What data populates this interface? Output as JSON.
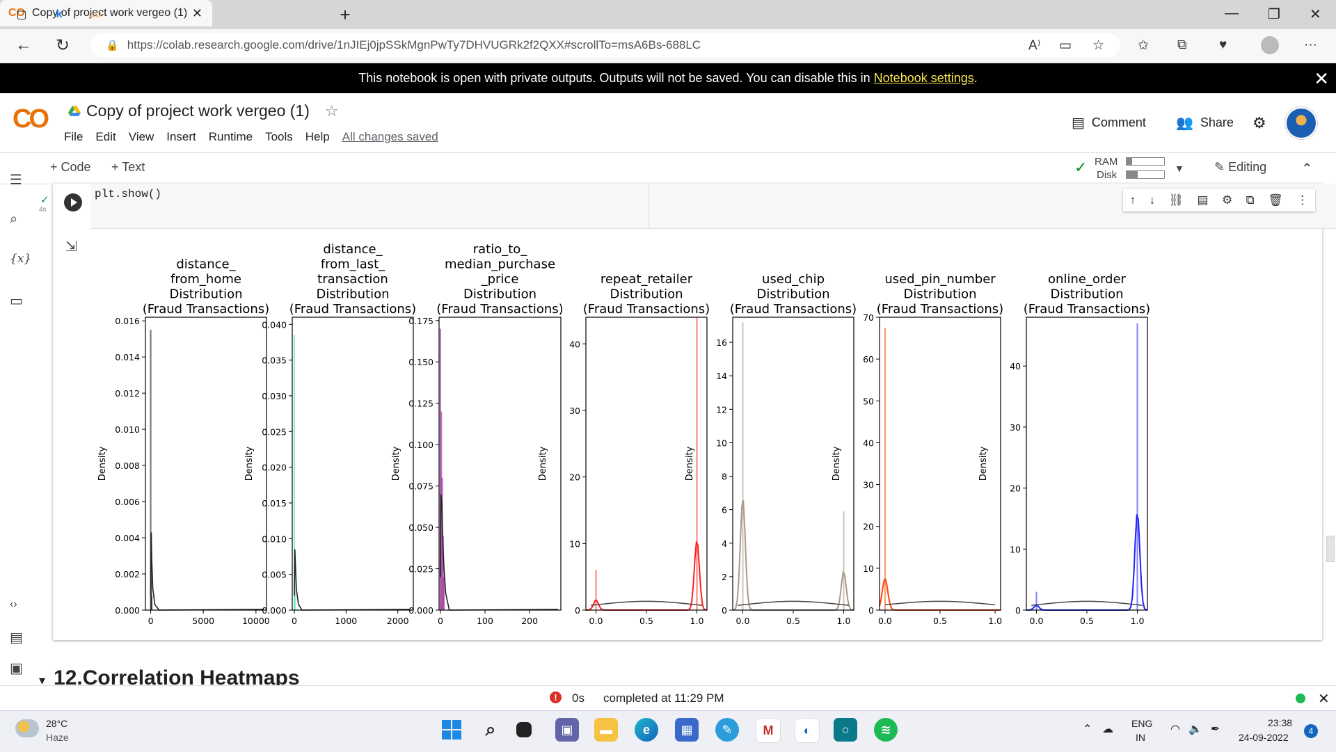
{
  "browser": {
    "tab_title": "Copy of project work vergeo (1)",
    "tab_logo": "CO",
    "mini_tab_2": "k",
    "url": "https://colab.research.google.com/drive/1nJIEj0jpSSkMgnPwTy7DHVUGRk2f2QXX#scrollTo=msA6Bs-688LC"
  },
  "notice": {
    "text": "This notebook is open with private outputs. Outputs will not be saved. You can disable this in",
    "link": "Notebook settings",
    "suffix": "."
  },
  "colab": {
    "logo": "CO",
    "title": "Copy of project work vergeo (1)",
    "menu": [
      "File",
      "Edit",
      "View",
      "Insert",
      "Runtime",
      "Tools",
      "Help"
    ],
    "saved_status": "All changes saved",
    "comment_label": "Comment",
    "share_label": "Share",
    "add_code": "+ Code",
    "add_text": "+ Text",
    "ram_label": "RAM",
    "disk_label": "Disk",
    "ram_usage": 0.15,
    "disk_usage": 0.3,
    "editing_label": "Editing"
  },
  "cell": {
    "code": "plt.show()",
    "exec_time": "4s"
  },
  "section_heading": "12.Correlation Heatmaps",
  "status": {
    "duration": "0s",
    "completed": "completed at 11:29 PM"
  },
  "taskbar": {
    "weather_temp": "28°C",
    "weather_desc": "Haze",
    "lang_top": "ENG",
    "lang_bottom": "IN",
    "time": "23:38",
    "date": "24-09-2022",
    "notifications": "4"
  },
  "chart_data": [
    {
      "type": "area",
      "title": "distance_\nfrom_home\nDistribution\n(Fraud Transactions)",
      "ylabel": "Density",
      "xticks": [
        "0",
        "5000",
        "10000"
      ],
      "yticks": [
        "0.000",
        "0.002",
        "0.004",
        "0.006",
        "0.008",
        "0.010",
        "0.012",
        "0.014",
        "0.016"
      ],
      "xlim": [
        -500,
        11000
      ],
      "ylim": [
        0,
        0.0162
      ],
      "color": "#000000",
      "series": [
        {
          "name": "histogram",
          "x": [
            0,
            50,
            100
          ],
          "values": [
            0.0155,
            0.0042,
            0.0008
          ]
        },
        {
          "name": "kde",
          "x": [
            0,
            50,
            100,
            200,
            400,
            800
          ],
          "values": [
            0.0008,
            0.0043,
            0.0028,
            0.0012,
            0.0003,
            0.0
          ]
        }
      ]
    },
    {
      "type": "area",
      "title": "distance_\nfrom_last_\ntransaction\nDistribution\n(Fraud Transactions)",
      "ylabel": "Density",
      "xticks": [
        "0",
        "1000",
        "2000"
      ],
      "yticks": [
        "0.000",
        "0.005",
        "0.010",
        "0.015",
        "0.020",
        "0.025",
        "0.030",
        "0.035",
        "0.040"
      ],
      "xlim": [
        -40,
        2300
      ],
      "ylim": [
        0,
        0.041
      ],
      "color": "#3de0a0",
      "series": [
        {
          "name": "histogram",
          "x": [
            0,
            15
          ],
          "values": [
            0.0385,
            0.0085
          ]
        },
        {
          "name": "kde",
          "x": [
            0,
            10,
            20,
            40,
            80,
            150
          ],
          "values": [
            0.002,
            0.0085,
            0.0065,
            0.003,
            0.0008,
            0.0
          ]
        }
      ]
    },
    {
      "type": "area",
      "title": "ratio_to_\nmedian_purchase\n_price\nDistribution\n(Fraud Transactions)",
      "ylabel": "Density",
      "xticks": [
        "0",
        "100",
        "200"
      ],
      "yticks": [
        "0.000",
        "0.025",
        "0.050",
        "0.075",
        "0.100",
        "0.125",
        "0.150",
        "0.175"
      ],
      "xlim": [
        -3,
        270
      ],
      "ylim": [
        0,
        0.177
      ],
      "color": "#8b008b",
      "series": [
        {
          "name": "histogram",
          "x": [
            0,
            2,
            4,
            6,
            8
          ],
          "values": [
            0.17,
            0.12,
            0.08,
            0.045,
            0.02
          ]
        },
        {
          "name": "kde",
          "x": [
            0,
            1,
            3,
            5,
            8,
            12,
            20
          ],
          "values": [
            0.02,
            0.07,
            0.065,
            0.045,
            0.025,
            0.01,
            0.0
          ]
        }
      ]
    },
    {
      "type": "area",
      "title": "repeat_retailer\nDistribution\n(Fraud Transactions)",
      "ylabel": "Density",
      "xticks": [
        "0.0",
        "0.5",
        "1.0"
      ],
      "yticks": [
        "0",
        "10",
        "20",
        "30",
        "40"
      ],
      "xlim": [
        -0.1,
        1.1
      ],
      "ylim": [
        0,
        44
      ],
      "color": "#ff2020",
      "series": [
        {
          "name": "histogram",
          "x": [
            0.0,
            1.0
          ],
          "values": [
            6,
            44
          ]
        },
        {
          "name": "kde",
          "x": [
            0.0,
            1.0
          ],
          "values": [
            1.5,
            10.5
          ]
        }
      ]
    },
    {
      "type": "area",
      "title": "used_chip\nDistribution\n(Fraud Transactions)",
      "ylabel": "Density",
      "xticks": [
        "0.0",
        "0.5",
        "1.0"
      ],
      "yticks": [
        "0",
        "2",
        "4",
        "6",
        "8",
        "10",
        "12",
        "14",
        "16"
      ],
      "xlim": [
        -0.1,
        1.1
      ],
      "ylim": [
        0,
        17.5
      ],
      "color": "#a89a88",
      "series": [
        {
          "name": "histogram",
          "x": [
            0.0,
            1.0
          ],
          "values": [
            17.2,
            5.9
          ]
        },
        {
          "name": "kde",
          "x": [
            0.0,
            1.0
          ],
          "values": [
            6.7,
            2.3
          ]
        }
      ]
    },
    {
      "type": "area",
      "title": "used_pin_number\nDistribution\n(Fraud Transactions)",
      "ylabel": "Density",
      "xticks": [
        "0.0",
        "0.5",
        "1.0"
      ],
      "yticks": [
        "0",
        "10",
        "20",
        "30",
        "40",
        "50",
        "60",
        "70"
      ],
      "xlim": [
        -0.05,
        1.05
      ],
      "ylim": [
        0,
        70
      ],
      "color": "#ff4500",
      "series": [
        {
          "name": "histogram",
          "x": [
            0.0
          ],
          "values": [
            67.5
          ]
        },
        {
          "name": "kde",
          "x": [
            0.0
          ],
          "values": [
            7.5
          ]
        }
      ]
    },
    {
      "type": "area",
      "title": "online_order\nDistribution\n(Fraud Transactions)",
      "ylabel": "Density",
      "xticks": [
        "0.0",
        "0.5",
        "1.0"
      ],
      "yticks": [
        "0",
        "10",
        "20",
        "30",
        "40"
      ],
      "xlim": [
        -0.1,
        1.1
      ],
      "ylim": [
        0,
        48
      ],
      "color": "#2020ff",
      "series": [
        {
          "name": "histogram",
          "x": [
            0.0,
            1.0
          ],
          "values": [
            3,
            47
          ]
        },
        {
          "name": "kde",
          "x": [
            0.0,
            1.0
          ],
          "values": [
            0.8,
            16
          ]
        }
      ]
    }
  ]
}
